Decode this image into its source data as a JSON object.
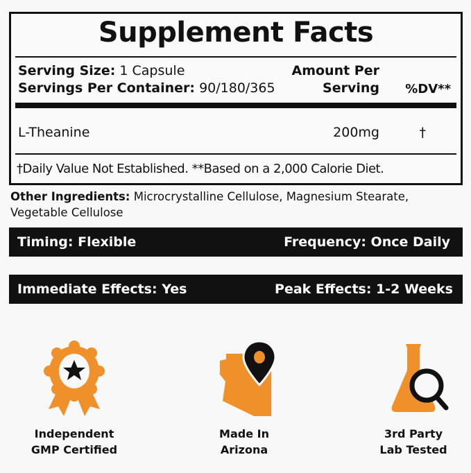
{
  "facts": {
    "title": "Supplement Facts",
    "serving_size_label": "Serving Size:",
    "serving_size_value": "1 Capsule",
    "servings_label": "Servings Per Container:",
    "servings_value": "90/180/365",
    "amount_header_1": "Amount Per",
    "amount_header_2": "Serving",
    "dv_header": "%DV**",
    "ingredients": [
      {
        "name": "L-Theanine",
        "amount": "200mg",
        "dv": "†"
      }
    ],
    "footnote": "†Daily Value Not Established. **Based on a 2,000 Calorie Diet."
  },
  "other_ingredients": {
    "label": "Other Ingredients:",
    "value": "Microcrystalline Cellulose, Magnesium Stearate, Vegetable Cellulose"
  },
  "bars": [
    {
      "left": "Timing: Flexible",
      "right": "Frequency: Once Daily"
    },
    {
      "left": "Immediate Effects:  Yes",
      "right": "Peak Effects: 1-2 Weeks"
    }
  ],
  "badges": [
    {
      "icon": "award-ribbon-star-icon",
      "line1": "Independent",
      "line2": "GMP Certified"
    },
    {
      "icon": "arizona-map-pin-icon",
      "line1": "Made In",
      "line2": "Arizona"
    },
    {
      "icon": "flask-magnifier-icon",
      "line1": "3rd Party",
      "line2": "Lab Tested"
    }
  ],
  "colors": {
    "accent": "#f0902a",
    "dark": "#111111"
  }
}
